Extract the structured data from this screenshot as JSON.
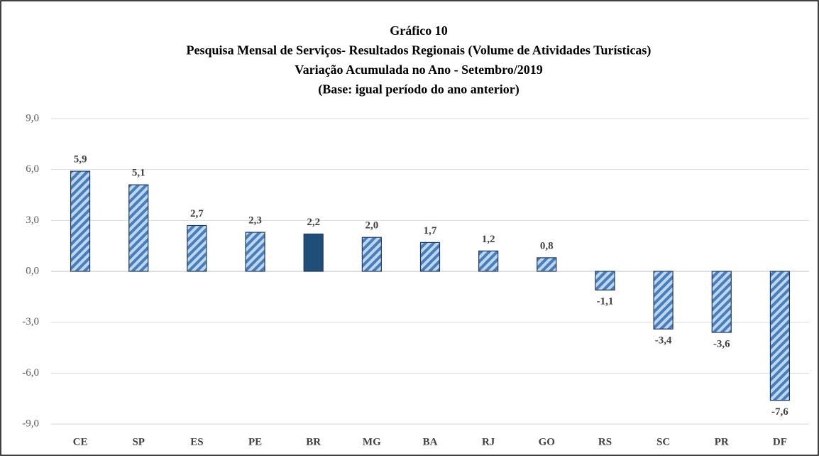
{
  "chart_data": {
    "type": "bar",
    "title": [
      "Gráfico 10",
      "Pesquisa Mensal de Serviços- Resultados Regionais (Volume de Atividades Turísticas)",
      "Variação Acumulada no Ano - Setembro/2019",
      "(Base: igual período do ano anterior)"
    ],
    "categories": [
      "CE",
      "SP",
      "ES",
      "PE",
      "BR",
      "MG",
      "BA",
      "RJ",
      "GO",
      "RS",
      "SC",
      "PR",
      "DF"
    ],
    "values": [
      5.9,
      5.1,
      2.7,
      2.3,
      2.2,
      2.0,
      1.7,
      1.2,
      0.8,
      -1.1,
      -3.4,
      -3.6,
      -7.6
    ],
    "value_labels": [
      "5,9",
      "5,1",
      "2,7",
      "2,3",
      "2,2",
      "2,0",
      "1,7",
      "1,2",
      "0,8",
      "-1,1",
      "-3,4",
      "-3,6",
      "-7,6"
    ],
    "colors": [
      "#4a7ebb",
      "#4a7ebb",
      "#4a7ebb",
      "#4a7ebb",
      "#1f4e79",
      "#4a7ebb",
      "#4a7ebb",
      "#4a7ebb",
      "#4a7ebb",
      "#4a7ebb",
      "#4a7ebb",
      "#4a7ebb",
      "#4a7ebb"
    ],
    "hatched": [
      true,
      true,
      true,
      true,
      false,
      true,
      true,
      true,
      true,
      true,
      true,
      true,
      true
    ],
    "ylim": [
      -9,
      9
    ],
    "yticks": [
      {
        "value": 9,
        "label": "9,0"
      },
      {
        "value": 6,
        "label": "6,0"
      },
      {
        "value": 3,
        "label": "3,0"
      },
      {
        "value": 0,
        "label": "0,0"
      },
      {
        "value": -3,
        "label": "-3,0"
      },
      {
        "value": -6,
        "label": "-6,0"
      },
      {
        "value": -9,
        "label": "-9,0"
      }
    ],
    "grid": true
  }
}
